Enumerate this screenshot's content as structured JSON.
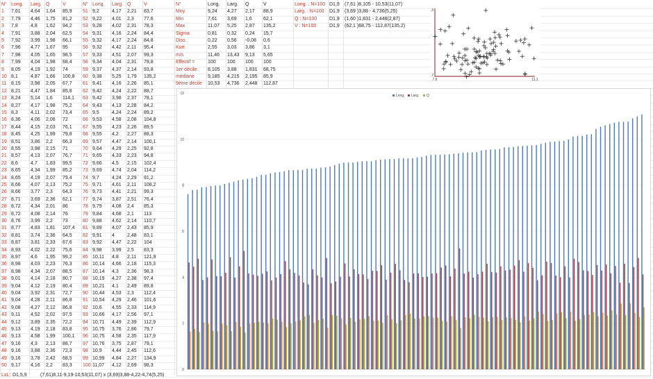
{
  "table1": {
    "headers": [
      "N°",
      "Long.",
      "Larg.",
      "Q",
      "V"
    ],
    "rows": [
      [
        "1",
        "7,61",
        "4,64",
        "1,64",
        "85,9"
      ],
      [
        "2",
        "7,79",
        "4,46",
        "1,75",
        "81,2"
      ],
      [
        "3",
        "7,8",
        "4,8",
        "1,62",
        "94,2"
      ],
      [
        "4",
        "7,91",
        "3,88",
        "2,04",
        "62,5"
      ],
      [
        "5",
        "7,92",
        "3,99",
        "1,98",
        "66,1"
      ],
      [
        "6",
        "7,96",
        "4,77",
        "1,67",
        "95"
      ],
      [
        "7",
        "7,98",
        "4,05",
        "1,65",
        "98,5"
      ],
      [
        "8",
        "7,99",
        "4,04",
        "1,98",
        "68,4"
      ],
      [
        "9",
        "8,05",
        "4,19",
        "1,92",
        "74"
      ],
      [
        "10",
        "8,1",
        "4,87",
        "1,66",
        "100,8"
      ],
      [
        "11",
        "8,15",
        "3,98",
        "2,05",
        "67,7"
      ],
      [
        "12",
        "8,21",
        "4,47",
        "1,84",
        "85,8"
      ],
      [
        "13",
        "8,24",
        "5,14",
        "1,6",
        "114,1"
      ],
      [
        "14",
        "8,27",
        "4,17",
        "1,98",
        "75,2"
      ],
      [
        "15",
        "8,3",
        "4,11",
        "2,02",
        "73,4"
      ],
      [
        "16",
        "8,36",
        "4,06",
        "2,06",
        "72"
      ],
      [
        "17",
        "8,44",
        "4,15",
        "2,03",
        "76,1"
      ],
      [
        "18",
        "8,45",
        "4,25",
        "1,99",
        "79,8"
      ],
      [
        "19",
        "8,51",
        "3,86",
        "2,2",
        "66,3"
      ],
      [
        "20",
        "8,55",
        "3,98",
        "2,15",
        "71"
      ],
      [
        "21",
        "8,57",
        "4,13",
        "2,07",
        "76,7"
      ],
      [
        "22",
        "8,6",
        "4,7",
        "1,83",
        "99,5"
      ],
      [
        "23",
        "8,65",
        "4,34",
        "1,99",
        "85,2"
      ],
      [
        "24",
        "8,65",
        "4,19",
        "2,07",
        "79,4"
      ],
      [
        "25",
        "8,66",
        "4,07",
        "2,13",
        "75,2"
      ],
      [
        "26",
        "8,66",
        "3,77",
        "2,3",
        "64,3"
      ],
      [
        "27",
        "8,71",
        "3,69",
        "2,36",
        "62,1"
      ],
      [
        "28",
        "8,72",
        "4,34",
        "2,01",
        "86"
      ],
      [
        "29",
        "8,72",
        "4,08",
        "2,14",
        "76"
      ],
      [
        "30",
        "8,76",
        "3,99",
        "2,2",
        "73"
      ],
      [
        "31",
        "8,77",
        "4,83",
        "1,81",
        "107,4"
      ],
      [
        "32",
        "8,81",
        "3,74",
        "2,36",
        "64,5"
      ],
      [
        "33",
        "8,87",
        "3,81",
        "2,33",
        "67,6"
      ],
      [
        "34",
        "8,93",
        "4,02",
        "2,22",
        "75,6"
      ],
      [
        "35",
        "8,97",
        "4,6",
        "1,95",
        "99,2"
      ],
      [
        "36",
        "8,98",
        "4,03",
        "2,23",
        "76,3"
      ],
      [
        "37",
        "8,98",
        "4,34",
        "2,07",
        "88,5"
      ],
      [
        "38",
        "9,01",
        "4,14",
        "2,18",
        "80,7"
      ],
      [
        "39",
        "9,04",
        "4,12",
        "2,19",
        "80,4"
      ],
      [
        "40",
        "9,04",
        "3,92",
        "2,31",
        "72,7"
      ],
      [
        "41",
        "9,04",
        "4,28",
        "2,11",
        "86,8"
      ],
      [
        "42",
        "9,08",
        "4,27",
        "2,12",
        "86,8"
      ],
      [
        "43",
        "9,11",
        "4,52",
        "2,02",
        "97,5"
      ],
      [
        "44",
        "9,12",
        "3,89",
        "2,35",
        "72,2"
      ],
      [
        "45",
        "9,13",
        "4,19",
        "2,18",
        "83,8"
      ],
      [
        "46",
        "9,13",
        "4,58",
        "1,99",
        "100,1"
      ],
      [
        "47",
        "9,16",
        "4,3",
        "2,13",
        "88,7"
      ],
      [
        "48",
        "9,16",
        "3,88",
        "2,36",
        "72,3"
      ],
      [
        "49",
        "9,16",
        "3,78",
        "2,42",
        "68,5"
      ],
      [
        "50",
        "9,17",
        "4,16",
        "2,2",
        "83,3"
      ]
    ]
  },
  "table2": {
    "headers": [
      "N°",
      "Long.",
      "Larg.",
      "Q",
      "V"
    ],
    "rows": [
      [
        "51",
        "9,2",
        "4,17",
        "2,21",
        "83,7"
      ],
      [
        "52",
        "9,22",
        "4,01",
        "2,3",
        "77,6"
      ],
      [
        "53",
        "9,28",
        "4,02",
        "2,31",
        "78,3"
      ],
      [
        "54",
        "9,31",
        "4,16",
        "2,24",
        "84,4"
      ],
      [
        "55",
        "9,32",
        "4,17",
        "2,24",
        "84,8"
      ],
      [
        "56",
        "9,32",
        "4,42",
        "2,11",
        "95,4"
      ],
      [
        "57",
        "9,33",
        "4,51",
        "2,07",
        "99,3"
      ],
      [
        "58",
        "9,34",
        "4,04",
        "2,31",
        "79,8"
      ],
      [
        "59",
        "9,37",
        "4,37",
        "2,14",
        "93,8"
      ],
      [
        "60",
        "9,38",
        "5,25",
        "1,79",
        "135,2"
      ],
      [
        "61",
        "9,41",
        "4,16",
        "2,26",
        "85,1"
      ],
      [
        "62",
        "9,42",
        "4,24",
        "2,22",
        "88,7"
      ],
      [
        "63",
        "9,42",
        "3,98",
        "2,37",
        "78,1"
      ],
      [
        "64",
        "9,43",
        "4,13",
        "2,28",
        "84,2"
      ],
      [
        "65",
        "9,5",
        "4,24",
        "2,24",
        "89,2"
      ],
      [
        "66",
        "9,53",
        "4,58",
        "2,08",
        "104,8"
      ],
      [
        "67",
        "9,55",
        "4,23",
        "2,26",
        "89,5"
      ],
      [
        "68",
        "9,55",
        "4,2",
        "2,27",
        "88,3"
      ],
      [
        "69",
        "9,57",
        "4,47",
        "2,14",
        "100,1"
      ],
      [
        "70",
        "9,64",
        "4,29",
        "2,25",
        "92,8"
      ],
      [
        "71",
        "9,65",
        "4,33",
        "2,23",
        "94,8"
      ],
      [
        "72",
        "9,66",
        "4,5",
        "2,15",
        "102,4"
      ],
      [
        "73",
        "9,69",
        "4,74",
        "2,04",
        "114,2"
      ],
      [
        "74",
        "9,7",
        "4,24",
        "2,29",
        "91,2"
      ],
      [
        "75",
        "9,71",
        "4,61",
        "2,11",
        "108,2"
      ],
      [
        "76",
        "9,73",
        "4,41",
        "2,21",
        "99,3"
      ],
      [
        "77",
        "9,74",
        "3,87",
        "2,51",
        "76,4"
      ],
      [
        "78",
        "9,79",
        "4,08",
        "2,4",
        "85,3"
      ],
      [
        "79",
        "9,84",
        "4,68",
        "2,1",
        "113"
      ],
      [
        "80",
        "9,88",
        "4,62",
        "2,14",
        "110,7"
      ],
      [
        "81",
        "9,89",
        "4,07",
        "2,43",
        "85,9"
      ],
      [
        "82",
        "9,91",
        "4",
        "2,48",
        "83,1"
      ],
      [
        "83",
        "9,92",
        "4,47",
        "2,22",
        "104"
      ],
      [
        "84",
        "9,98",
        "3,99",
        "2,5",
        "83,3"
      ],
      [
        "85",
        "10,11",
        "4,8",
        "2,11",
        "121,9"
      ],
      [
        "86",
        "10,14",
        "4,66",
        "2,18",
        "115,3"
      ],
      [
        "87",
        "10,14",
        "4,3",
        "2,36",
        "98,3"
      ],
      [
        "88",
        "10,19",
        "4,27",
        "2,38",
        "97,4"
      ],
      [
        "89",
        "10,21",
        "4,1",
        "2,49",
        "89,8"
      ],
      [
        "90",
        "10,44",
        "4,53",
        "2,3",
        "112,4"
      ],
      [
        "91",
        "10,54",
        "4,29",
        "2,46",
        "101,6"
      ],
      [
        "92",
        "10,6",
        "4,55",
        "2,33",
        "114,9"
      ],
      [
        "93",
        "10,66",
        "4,17",
        "2,56",
        "97,1"
      ],
      [
        "94",
        "10,71",
        "4,49",
        "2,39",
        "112,9"
      ],
      [
        "95",
        "10,75",
        "3,76",
        "2,86",
        "79,7"
      ],
      [
        "96",
        "10,75",
        "4,58",
        "2,35",
        "117,9"
      ],
      [
        "97",
        "10,76",
        "3,75",
        "2,87",
        "79,1"
      ],
      [
        "98",
        "10,9",
        "4,44",
        "2,45",
        "112,6"
      ],
      [
        "99",
        "10,99",
        "4,84",
        "2,27",
        "134,9"
      ],
      [
        "100",
        "11,07",
        "4,12",
        "2,69",
        "98,3"
      ]
    ]
  },
  "stats": {
    "headers": [
      "N°",
      "Long.",
      "Larg.",
      "Q",
      "V"
    ],
    "rows": [
      [
        "Moy",
        "9,24",
        "4,27",
        "2,17",
        "88,9"
      ],
      [
        "Min",
        "7,61",
        "3,69",
        "1,6",
        "62,1"
      ],
      [
        "Max",
        "11,07",
        "5,25",
        "2,87",
        "135,2"
      ],
      [
        "Sigma",
        "0,81",
        "0,32",
        "0,24",
        "15,7"
      ],
      [
        "Diss",
        "0,22",
        "0,56",
        "-0,08",
        "0,6"
      ],
      [
        "Kurt",
        "2,55",
        "3,03",
        "3,86",
        "3,1"
      ],
      [
        "m/s",
        "11,46",
        "13,43",
        "9,13",
        "5,65"
      ],
      [
        "Effectif =",
        "100",
        "100",
        "100",
        "100"
      ],
      [
        "1er décile",
        "8,105",
        "3,88",
        "1,831",
        "68,75"
      ],
      [
        "médiane",
        "9,185",
        "4,215",
        "2,195",
        "85,9"
      ],
      [
        "9ème décile",
        "10,53",
        "4,736",
        "2,448",
        "112,87"
      ]
    ]
  },
  "summary": {
    "rows": [
      [
        "Long. : N=100",
        "D1,9",
        "(7,61 )8,105 - 10,53(11,07)"
      ],
      [
        "Larg. : N=100",
        "D1,9",
        "(3,69 )3,88 - 4,736(5,25)"
      ],
      [
        "Q : N=100",
        "D1,9",
        "(1,60 )1,831 - 2,448(2,87)"
      ],
      [
        "V : N=100",
        "D1,9",
        "(62,1 )68,75 - 112,87(135,2)"
      ]
    ]
  },
  "scatter": {
    "y_top": "5,3",
    "y_bottom": "3,7",
    "x_left": "7,6",
    "x_right": "11,1"
  },
  "chart_data": {
    "type": "bar",
    "legend": [
      "Long.",
      "Larg.",
      "Q"
    ],
    "colors": [
      "#4a7ab8",
      "#a23b3b",
      "#9bb545"
    ],
    "ylim": [
      0,
      12
    ],
    "yticks": [
      "0",
      "2",
      "4",
      "6",
      "8",
      "10",
      "12"
    ],
    "series": [
      {
        "name": "Long.",
        "values": [
          7.61,
          7.79,
          7.8,
          7.91,
          7.92,
          7.96,
          7.98,
          7.99,
          8.05,
          8.1,
          8.15,
          8.21,
          8.24,
          8.27,
          8.3,
          8.36,
          8.44,
          8.45,
          8.51,
          8.55,
          8.57,
          8.6,
          8.65,
          8.65,
          8.66,
          8.66,
          8.71,
          8.72,
          8.72,
          8.76,
          8.77,
          8.81,
          8.87,
          8.93,
          8.97,
          8.98,
          8.98,
          9.01,
          9.04,
          9.04,
          9.04,
          9.08,
          9.11,
          9.12,
          9.13,
          9.13,
          9.16,
          9.16,
          9.16,
          9.17,
          9.2,
          9.22,
          9.28,
          9.31,
          9.32,
          9.32,
          9.33,
          9.34,
          9.37,
          9.38,
          9.41,
          9.42,
          9.42,
          9.43,
          9.5,
          9.53,
          9.55,
          9.55,
          9.57,
          9.64,
          9.65,
          9.66,
          9.69,
          9.7,
          9.71,
          9.73,
          9.74,
          9.79,
          9.84,
          9.88,
          9.89,
          9.91,
          9.92,
          9.98,
          10.11,
          10.14,
          10.14,
          10.19,
          10.21,
          10.44,
          10.54,
          10.6,
          10.66,
          10.71,
          10.75,
          10.75,
          10.76,
          10.9,
          10.99,
          11.07
        ]
      },
      {
        "name": "Larg.",
        "values": [
          4.64,
          4.46,
          4.8,
          3.88,
          3.99,
          4.77,
          4.05,
          4.04,
          4.19,
          4.87,
          3.98,
          4.47,
          5.14,
          4.17,
          4.11,
          4.06,
          4.15,
          4.25,
          3.86,
          3.98,
          4.13,
          4.7,
          4.34,
          4.19,
          4.07,
          3.77,
          3.69,
          4.34,
          4.08,
          3.99,
          4.83,
          3.74,
          3.81,
          4.02,
          4.6,
          4.03,
          4.34,
          4.14,
          4.12,
          3.92,
          4.28,
          4.27,
          4.52,
          3.89,
          4.19,
          4.58,
          4.3,
          3.88,
          3.78,
          4.16,
          4.17,
          4.01,
          4.02,
          4.16,
          4.17,
          4.42,
          4.51,
          4.04,
          4.37,
          5.25,
          4.16,
          4.24,
          3.98,
          4.13,
          4.24,
          4.58,
          4.23,
          4.2,
          4.47,
          4.29,
          4.33,
          4.5,
          4.74,
          4.24,
          4.61,
          4.41,
          3.87,
          4.08,
          4.68,
          4.62,
          4.07,
          4.0,
          4.47,
          3.99,
          4.8,
          4.66,
          4.3,
          4.27,
          4.1,
          4.53,
          4.29,
          4.55,
          4.17,
          4.49,
          3.76,
          4.58,
          3.75,
          4.44,
          4.84,
          4.12
        ]
      },
      {
        "name": "Q",
        "values": [
          1.64,
          1.75,
          1.62,
          2.04,
          1.98,
          1.67,
          1.65,
          1.98,
          1.92,
          1.66,
          2.05,
          1.84,
          1.6,
          1.98,
          2.02,
          2.06,
          2.03,
          1.99,
          2.2,
          2.15,
          2.07,
          1.83,
          1.99,
          2.07,
          2.13,
          2.3,
          2.36,
          2.01,
          2.14,
          2.2,
          1.81,
          2.36,
          2.33,
          2.22,
          1.95,
          2.23,
          2.07,
          2.18,
          2.19,
          2.31,
          2.11,
          2.12,
          2.02,
          2.35,
          2.18,
          1.99,
          2.13,
          2.36,
          2.42,
          2.2,
          2.21,
          2.3,
          2.31,
          2.24,
          2.24,
          2.11,
          2.07,
          2.31,
          2.14,
          1.79,
          2.26,
          2.22,
          2.37,
          2.28,
          2.24,
          2.08,
          2.26,
          2.27,
          2.14,
          2.25,
          2.23,
          2.15,
          2.04,
          2.29,
          2.11,
          2.21,
          2.51,
          2.4,
          2.1,
          2.14,
          2.43,
          2.48,
          2.22,
          2.5,
          2.11,
          2.18,
          2.36,
          2.38,
          2.49,
          2.3,
          2.46,
          2.33,
          2.56,
          2.39,
          2.86,
          2.35,
          2.87,
          2.45,
          2.27,
          2.69
        ]
      }
    ]
  },
  "footer": {
    "label": "LxL:",
    "d": "D1,5,9",
    "text": "(7,61)8,11-9,19-10,53(11,07) x (3,69)3,88-4,22-4,74(5,25)"
  }
}
